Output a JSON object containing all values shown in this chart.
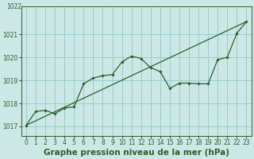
{
  "title": "Graphe pression niveau de la mer (hPa)",
  "bg_color": "#cce8e6",
  "grid_color": "#99ccc9",
  "line_color": "#2d5e2d",
  "xlim": [
    -0.5,
    23.5
  ],
  "ylim": [
    1016.6,
    1022.2
  ],
  "yticks": [
    1017,
    1018,
    1019,
    1020,
    1021
  ],
  "ytick_top": 1022,
  "xticks": [
    0,
    1,
    2,
    3,
    4,
    5,
    6,
    7,
    8,
    9,
    10,
    11,
    12,
    13,
    14,
    15,
    16,
    17,
    18,
    19,
    20,
    21,
    22,
    23
  ],
  "line1_x": [
    0,
    1,
    2,
    3,
    4,
    5,
    6,
    7,
    8,
    9,
    10,
    11,
    12,
    13,
    14,
    15,
    16,
    17,
    18,
    19,
    20,
    21,
    22,
    23
  ],
  "line1_y": [
    1017.05,
    1017.65,
    1017.7,
    1017.55,
    1017.8,
    1017.85,
    1018.85,
    1019.1,
    1019.2,
    1019.25,
    1019.8,
    1020.05,
    1019.95,
    1019.55,
    1019.38,
    1018.65,
    1018.88,
    1018.88,
    1018.85,
    1018.85,
    1019.9,
    1020.0,
    1021.05,
    1021.55
  ],
  "line2_x": [
    0,
    23
  ],
  "line2_y": [
    1017.05,
    1021.55
  ],
  "title_fontsize": 7.5,
  "tick_fontsize": 5.5,
  "ylabel_1017": "1017",
  "top_label": "1022"
}
